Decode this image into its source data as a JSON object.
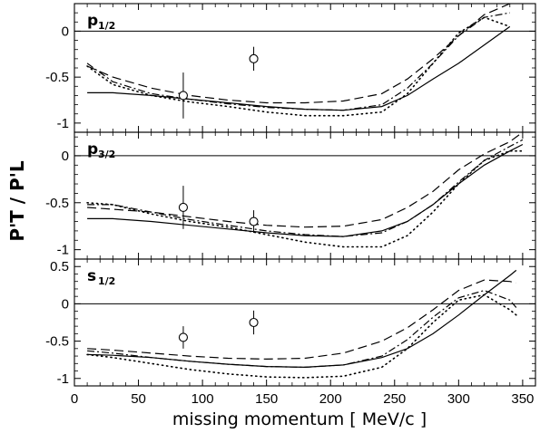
{
  "chart_data": {
    "type": "line",
    "xlabel": "missing momentum [ MeV/c ]",
    "ylabel": "P'T / P'L",
    "xlim": [
      0,
      360
    ],
    "x_ticks": [
      0,
      50,
      100,
      150,
      200,
      250,
      300,
      350
    ],
    "line_styles": [
      "solid",
      "dashed",
      "dash-dot",
      "dotted"
    ],
    "panels": [
      {
        "label_main": "p",
        "label_sub": "1/2",
        "ylim": [
          -1.1,
          0.3
        ],
        "y_ticks": [
          0,
          -0.5,
          -1
        ],
        "y_tick_labels": [
          "0",
          "-0.5",
          "-1"
        ],
        "data_points": [
          {
            "x": 85,
            "y": -0.7,
            "err": 0.25
          },
          {
            "x": 140,
            "y": -0.3,
            "err": 0.13
          }
        ],
        "series": [
          {
            "style": "solid",
            "x": [
              10,
              30,
              60,
              90,
              120,
              150,
              180,
              210,
              240,
              260,
              280,
              300,
              320,
              340
            ],
            "y": [
              -0.67,
              -0.67,
              -0.7,
              -0.74,
              -0.78,
              -0.82,
              -0.85,
              -0.86,
              -0.82,
              -0.7,
              -0.52,
              -0.35,
              -0.15,
              0.05
            ]
          },
          {
            "style": "dashed",
            "x": [
              10,
              30,
              60,
              90,
              120,
              150,
              180,
              210,
              240,
              260,
              280,
              300,
              320,
              340
            ],
            "y": [
              -0.38,
              -0.5,
              -0.62,
              -0.7,
              -0.75,
              -0.78,
              -0.78,
              -0.76,
              -0.68,
              -0.52,
              -0.3,
              -0.05,
              0.18,
              0.3
            ]
          },
          {
            "style": "dash-dot",
            "x": [
              10,
              30,
              60,
              90,
              120,
              150,
              180,
              210,
              240,
              260,
              280,
              300,
              320,
              340
            ],
            "y": [
              -0.35,
              -0.55,
              -0.68,
              -0.74,
              -0.79,
              -0.83,
              -0.85,
              -0.86,
              -0.8,
              -0.62,
              -0.35,
              -0.05,
              0.15,
              0.2
            ]
          },
          {
            "style": "dotted",
            "x": [
              10,
              30,
              60,
              90,
              120,
              150,
              180,
              210,
              240,
              260,
              280,
              300,
              320,
              340
            ],
            "y": [
              -0.38,
              -0.58,
              -0.7,
              -0.77,
              -0.82,
              -0.88,
              -0.92,
              -0.92,
              -0.88,
              -0.68,
              -0.35,
              -0.02,
              0.15,
              0.05
            ]
          }
        ]
      },
      {
        "label_main": "p",
        "label_sub": "3/2",
        "ylim": [
          -1.1,
          0.25
        ],
        "y_ticks": [
          0,
          -0.5,
          -1
        ],
        "y_tick_labels": [
          "0",
          "-0.5",
          "-1"
        ],
        "data_points": [
          {
            "x": 85,
            "y": -0.55,
            "err": 0.23
          },
          {
            "x": 140,
            "y": -0.7,
            "err": 0.12
          }
        ],
        "series": [
          {
            "style": "solid",
            "x": [
              10,
              30,
              60,
              90,
              120,
              150,
              180,
              210,
              240,
              260,
              280,
              300,
              320,
              340,
              350
            ],
            "y": [
              -0.67,
              -0.67,
              -0.7,
              -0.74,
              -0.78,
              -0.82,
              -0.85,
              -0.86,
              -0.8,
              -0.7,
              -0.52,
              -0.3,
              -0.1,
              0.05,
              0.12
            ]
          },
          {
            "style": "dashed",
            "x": [
              10,
              30,
              60,
              90,
              120,
              150,
              180,
              210,
              240,
              260,
              280,
              300,
              320,
              340,
              350
            ],
            "y": [
              -0.55,
              -0.57,
              -0.6,
              -0.65,
              -0.7,
              -0.74,
              -0.76,
              -0.75,
              -0.68,
              -0.55,
              -0.38,
              -0.15,
              0.02,
              0.15,
              0.25
            ]
          },
          {
            "style": "dash-dot",
            "x": [
              10,
              30,
              60,
              90,
              120,
              150,
              180,
              210,
              240,
              260,
              280,
              300,
              320,
              340,
              350
            ],
            "y": [
              -0.52,
              -0.52,
              -0.6,
              -0.68,
              -0.74,
              -0.8,
              -0.84,
              -0.86,
              -0.82,
              -0.7,
              -0.52,
              -0.28,
              -0.05,
              0.1,
              0.17
            ]
          },
          {
            "style": "dotted",
            "x": [
              10,
              30,
              60,
              90,
              120,
              150,
              180,
              210,
              240,
              260,
              280,
              300,
              320,
              340,
              350
            ],
            "y": [
              -0.5,
              -0.52,
              -0.62,
              -0.7,
              -0.76,
              -0.84,
              -0.92,
              -0.97,
              -0.97,
              -0.85,
              -0.6,
              -0.3,
              -0.05,
              0.05,
              0.05
            ]
          }
        ]
      },
      {
        "label_main": "s",
        "label_sub": "1/2",
        "ylim": [
          -1.1,
          0.6
        ],
        "y_ticks": [
          0.5,
          0,
          -0.5,
          -1
        ],
        "y_tick_labels": [
          "0.5",
          "0",
          "-0.5",
          "-1"
        ],
        "data_points": [
          {
            "x": 85,
            "y": -0.45,
            "err": 0.15
          },
          {
            "x": 140,
            "y": -0.25,
            "err": 0.16
          }
        ],
        "series": [
          {
            "style": "solid",
            "x": [
              10,
              30,
              60,
              90,
              120,
              150,
              180,
              210,
              240,
              260,
              280,
              300,
              320,
              340,
              345
            ],
            "y": [
              -0.68,
              -0.69,
              -0.72,
              -0.77,
              -0.81,
              -0.84,
              -0.85,
              -0.82,
              -0.72,
              -0.6,
              -0.4,
              -0.15,
              0.12,
              0.38,
              0.45
            ]
          },
          {
            "style": "dashed",
            "x": [
              10,
              30,
              60,
              90,
              120,
              150,
              180,
              210,
              240,
              260,
              280,
              300,
              320,
              340,
              345
            ],
            "y": [
              -0.6,
              -0.62,
              -0.66,
              -0.7,
              -0.73,
              -0.74,
              -0.73,
              -0.66,
              -0.5,
              -0.32,
              -0.08,
              0.18,
              0.32,
              0.3,
              0.28
            ]
          },
          {
            "style": "dash-dot",
            "x": [
              10,
              30,
              60,
              90,
              120,
              150,
              180,
              210,
              240,
              260,
              280,
              300,
              320,
              340,
              345
            ],
            "y": [
              -0.63,
              -0.66,
              -0.72,
              -0.77,
              -0.81,
              -0.84,
              -0.85,
              -0.82,
              -0.7,
              -0.48,
              -0.18,
              0.08,
              0.18,
              0.05,
              -0.05
            ]
          },
          {
            "style": "dotted",
            "x": [
              10,
              30,
              60,
              90,
              120,
              150,
              180,
              210,
              240,
              260,
              280,
              300,
              320,
              340,
              345
            ],
            "y": [
              -0.68,
              -0.72,
              -0.8,
              -0.88,
              -0.94,
              -0.98,
              -0.99,
              -0.97,
              -0.85,
              -0.6,
              -0.25,
              0.05,
              0.12,
              -0.08,
              -0.15
            ]
          }
        ]
      }
    ]
  }
}
